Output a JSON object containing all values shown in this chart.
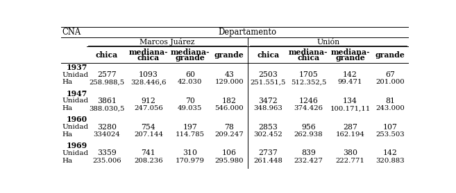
{
  "col_header_1": "CNA",
  "col_header_2": "Departamento",
  "subheader_mj": "Marcos Juárez",
  "subheader_u": "Unión",
  "years": [
    "1937",
    "1947",
    "1960",
    "1969"
  ],
  "data": {
    "1937": {
      "mj": [
        [
          "2577",
          "1093",
          "60",
          "43"
        ],
        [
          "258.988,5",
          "328.446,6",
          "42.030",
          "129.000"
        ]
      ],
      "u": [
        [
          "2503",
          "1705",
          "142",
          "67"
        ],
        [
          "251.551,5",
          "512.352,5",
          "99.471",
          "201.000"
        ]
      ]
    },
    "1947": {
      "mj": [
        [
          "3861",
          "912",
          "70",
          "182"
        ],
        [
          "388.030,5",
          "247.056",
          "49.035",
          "546.000"
        ]
      ],
      "u": [
        [
          "3472",
          "1246",
          "134",
          "81"
        ],
        [
          "348.963",
          "374.426",
          "100.171,11",
          "243.000"
        ]
      ]
    },
    "1960": {
      "mj": [
        [
          "3280",
          "754",
          "197",
          "78"
        ],
        [
          "334024",
          "207.144",
          "114.785",
          "209.247"
        ]
      ],
      "u": [
        [
          "2853",
          "956",
          "287",
          "107"
        ],
        [
          "302.452",
          "262.938",
          "162.194",
          "253.503"
        ]
      ]
    },
    "1969": {
      "mj": [
        [
          "3359",
          "741",
          "310",
          "106"
        ],
        [
          "235.006",
          "208.236",
          "170.979",
          "295.980"
        ]
      ],
      "u": [
        [
          "2737",
          "839",
          "380",
          "142"
        ],
        [
          "261.448",
          "232.427",
          "222.771",
          "320.883"
        ]
      ]
    }
  },
  "bg_color": "#ffffff",
  "text_color": "#000000",
  "line_color": "#000000",
  "font_size": 7.8,
  "font_family": "DejaVu Serif"
}
